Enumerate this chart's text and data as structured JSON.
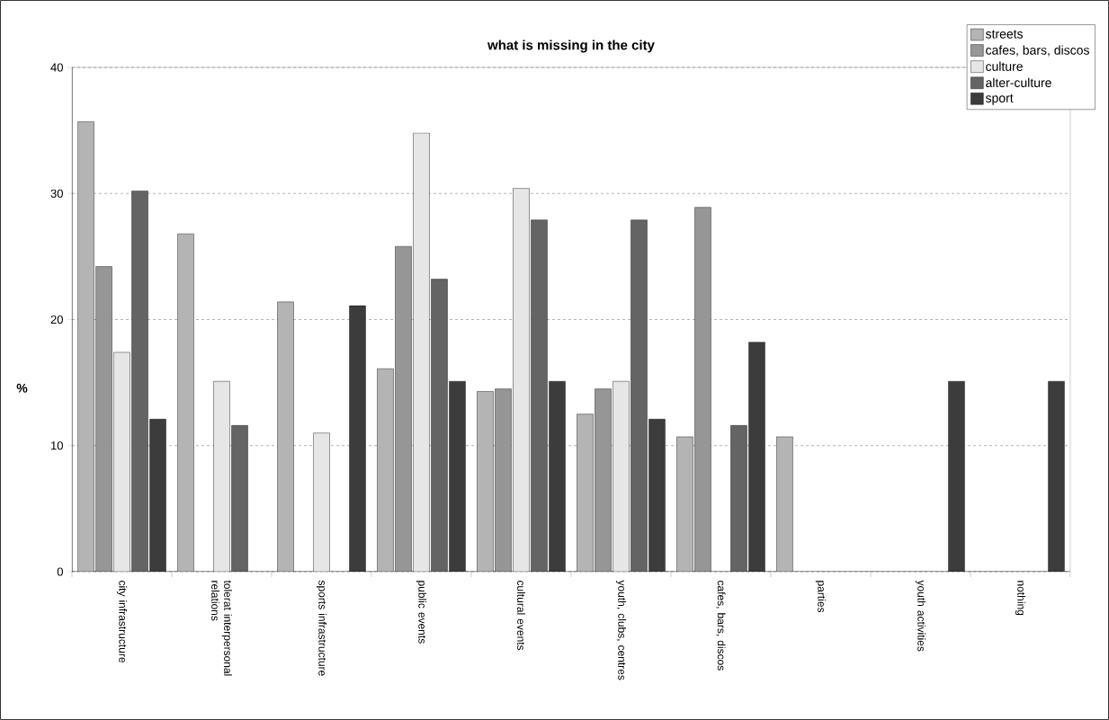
{
  "chart_data": {
    "type": "bar",
    "title": "what is missing in the city",
    "ylabel": "%",
    "categories": [
      "city infrastructure",
      "tolerat interpersonal relations",
      "sports infrastructure",
      "public events",
      "cultural events",
      "youth, clubs, centres",
      "cafes, bars, discos",
      "parties",
      "youth activities",
      "nothing"
    ],
    "series": [
      {
        "name": "streets",
        "color": "#b4b4b4",
        "values": [
          35.7,
          26.8,
          21.4,
          16.1,
          14.3,
          12.5,
          10.7,
          10.7,
          null,
          null
        ]
      },
      {
        "name": "cafes, bars, discos",
        "color": "#969696",
        "values": [
          24.2,
          null,
          null,
          25.8,
          14.5,
          14.5,
          28.9,
          null,
          null,
          null
        ]
      },
      {
        "name": "culture",
        "color": "#e6e6e6",
        "values": [
          17.4,
          15.1,
          11.0,
          34.8,
          30.4,
          15.1,
          null,
          null,
          null,
          null
        ]
      },
      {
        "name": "alter-culture",
        "color": "#646464",
        "values": [
          30.2,
          11.6,
          null,
          23.2,
          27.9,
          27.9,
          11.6,
          null,
          null,
          null
        ]
      },
      {
        "name": "sport",
        "color": "#3c3c3c",
        "values": [
          12.1,
          null,
          21.1,
          15.1,
          15.1,
          12.1,
          18.2,
          null,
          15.1,
          15.1
        ]
      }
    ],
    "ylim": [
      0,
      40
    ],
    "yticks": [
      0,
      10,
      20,
      30,
      40
    ],
    "grid": "y",
    "legend": "top right"
  }
}
